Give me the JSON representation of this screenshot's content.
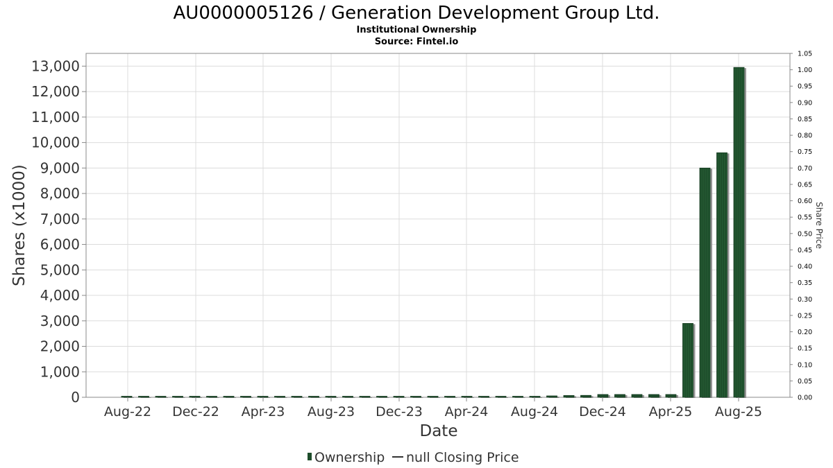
{
  "chart_data": {
    "type": "bar",
    "title": "AU0000005126 / Generation Development Group Ltd.",
    "subtitles": [
      "Institutional Ownership",
      "Source: Fintel.io"
    ],
    "xlabel": "Date",
    "ylabel": "Shares (x1000)",
    "y2label": "Share Price",
    "ylim": [
      0,
      13500
    ],
    "y2lim": [
      0,
      1.05
    ],
    "yticks": [
      "0",
      "1,000",
      "2,000",
      "3,000",
      "4,000",
      "5,000",
      "6,000",
      "7,000",
      "8,000",
      "9,000",
      "10,000",
      "11,000",
      "12,000",
      "13,000"
    ],
    "y2ticks": [
      "0.00",
      "0.05",
      "0.10",
      "0.15",
      "0.20",
      "0.25",
      "0.30",
      "0.35",
      "0.40",
      "0.45",
      "0.50",
      "0.55",
      "0.60",
      "0.65",
      "0.70",
      "0.75",
      "0.80",
      "0.85",
      "0.90",
      "0.95",
      "1.00",
      "1.05"
    ],
    "xticks": [
      "Aug-22",
      "Dec-22",
      "Apr-23",
      "Aug-23",
      "Dec-23",
      "Apr-24",
      "Aug-24",
      "Dec-24",
      "Apr-25",
      "Aug-25"
    ],
    "grid": true,
    "legend_position": "bottom",
    "colors": {
      "bar": "#1e4d2b",
      "bar_shadow": "#8a8a8a",
      "grid": "#dcdcdc"
    },
    "series": [
      {
        "name": "Ownership",
        "values": [
          8,
          10,
          14,
          16,
          18,
          20,
          22,
          24,
          24,
          22,
          20,
          18,
          16,
          14,
          14,
          12,
          12,
          12,
          10,
          10,
          10,
          8,
          8,
          8,
          8,
          55,
          70,
          75,
          110,
          110,
          110,
          110,
          110,
          2900,
          9000,
          9600,
          12950
        ]
      },
      {
        "name": "null Closing Price",
        "values": []
      }
    ]
  }
}
